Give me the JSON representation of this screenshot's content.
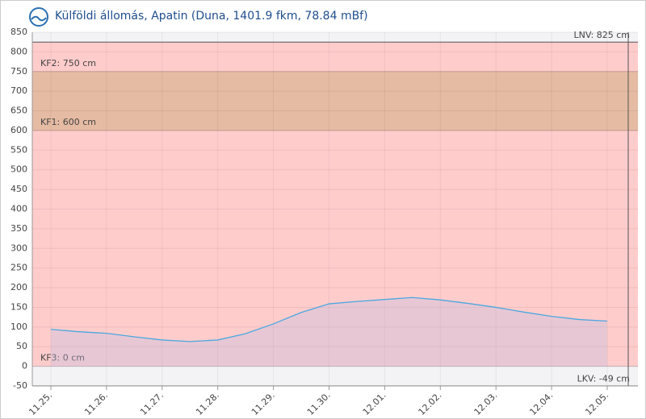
{
  "chart_data": {
    "type": "line",
    "title": "Külföldi állomás, Apatin (Duna, 1401.9 fkm, 78.84 mBf)",
    "categories": [
      "11.25.",
      null,
      "11.26.",
      null,
      "11.27.",
      null,
      "11.28.",
      null,
      "11.29.",
      null,
      "11.30.",
      null,
      "12.01.",
      null,
      "12.02.",
      null,
      "12.03.",
      null,
      "12.04.",
      null,
      "12.05."
    ],
    "series": [
      {
        "color": "#4aa8e0",
        "values": [
          94,
          88,
          84,
          75,
          67,
          63,
          67,
          83,
          108,
          137,
          159,
          165,
          170,
          175,
          169,
          160,
          150,
          138,
          127,
          119,
          115
        ]
      }
    ],
    "ylim": [
      -50,
      850
    ],
    "yticks": [
      -50,
      0,
      50,
      100,
      150,
      200,
      250,
      300,
      350,
      400,
      450,
      500,
      550,
      600,
      650,
      700,
      750,
      800,
      850
    ],
    "grid": true,
    "levels": [
      {
        "label": "LNV: 825 cm",
        "value": 825
      },
      {
        "label": "KF2: 750 cm",
        "value": 750
      },
      {
        "label": "KF1: 600 cm",
        "value": 600
      },
      {
        "label": "KF3: 0 cm",
        "value": 0
      },
      {
        "label": "LKV: -49 cm",
        "value": -49
      }
    ]
  }
}
